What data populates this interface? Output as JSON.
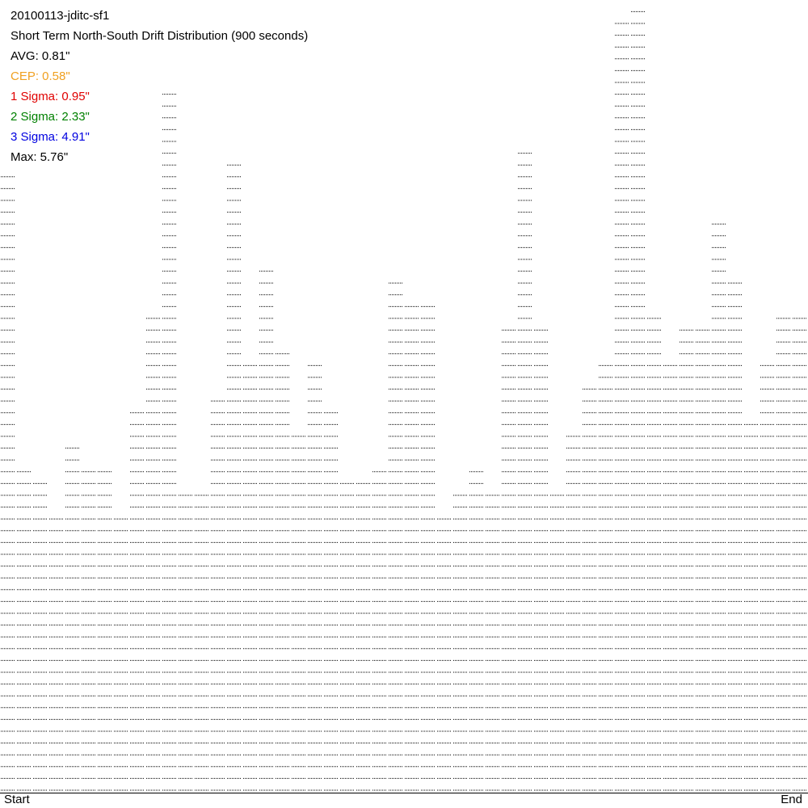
{
  "chart_data": {
    "type": "dot-columns",
    "title": "20100113-jditc-sf1",
    "subtitle": "Short Term North-South Drift Distribution (900 seconds)",
    "annotations": [
      {
        "text": "AVG: 0.81\"",
        "color": "#000000"
      },
      {
        "text": "CEP: 0.58\"",
        "color": "#f0a020"
      },
      {
        "text": "1 Sigma: 0.95\"",
        "color": "#e00000"
      },
      {
        "text": "2 Sigma: 2.33\"",
        "color": "#008000"
      },
      {
        "text": "3 Sigma: 4.91\"",
        "color": "#0000e0"
      },
      {
        "text": "Max: 5.76\"",
        "color": "#000000"
      }
    ],
    "x_labels": [
      "Start",
      "End"
    ],
    "color": "#000000",
    "values": [
      53,
      28,
      27,
      24,
      30,
      28,
      28,
      24,
      33,
      41,
      60,
      26,
      26,
      34,
      54,
      37,
      45,
      38,
      31,
      37,
      33,
      27,
      27,
      28,
      44,
      42,
      42,
      24,
      26,
      28,
      26,
      40,
      55,
      40,
      26,
      31,
      35,
      37,
      66,
      67,
      41,
      37,
      40,
      40,
      49,
      44,
      32,
      37,
      41,
      41
    ]
  }
}
